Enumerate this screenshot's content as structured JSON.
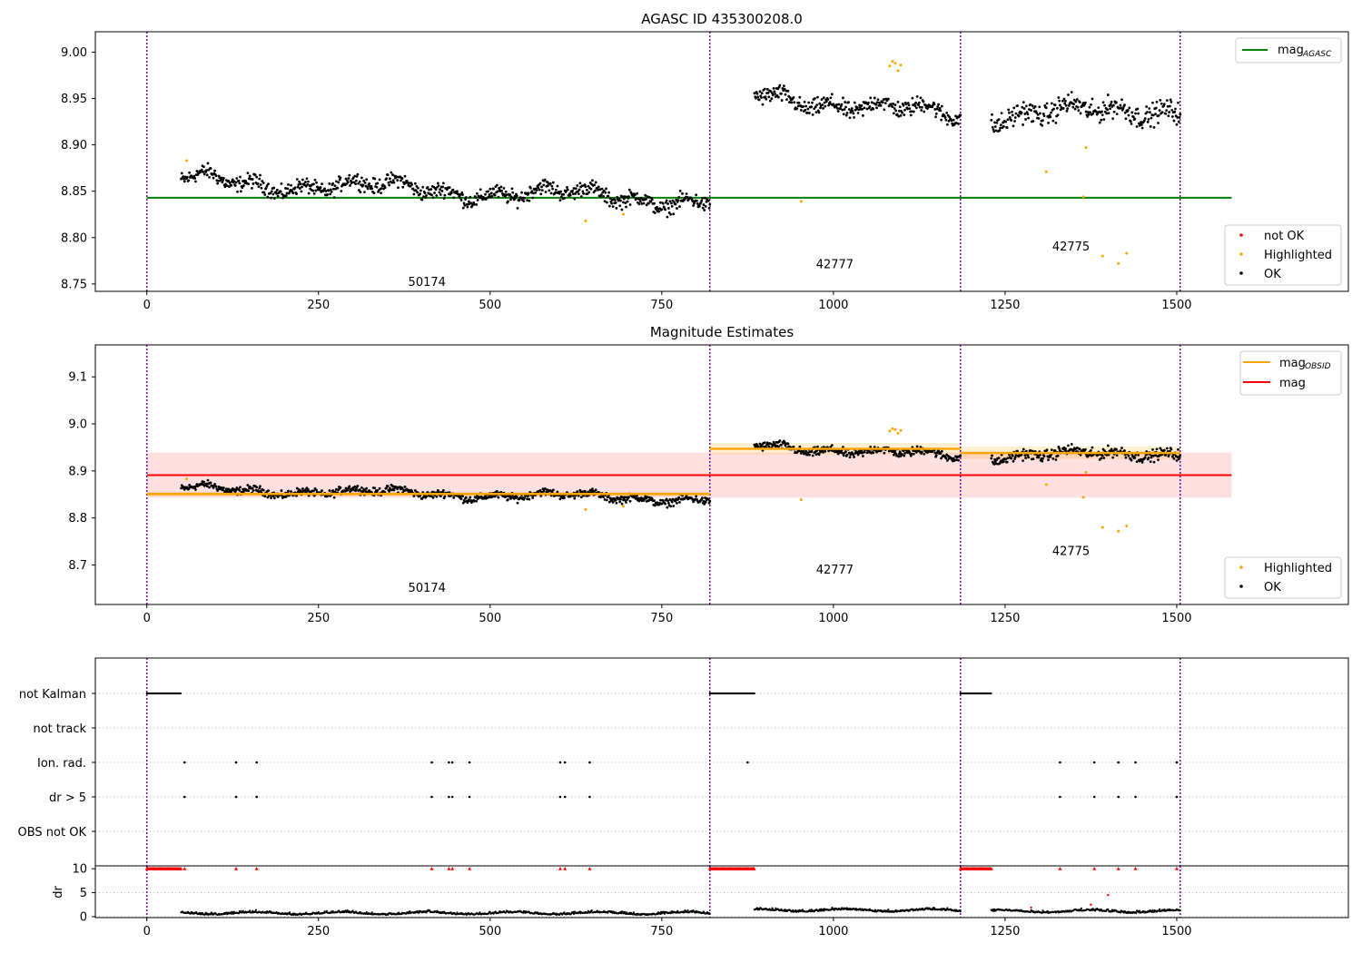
{
  "chart_data": [
    {
      "type": "scatter",
      "title": "AGASC ID 435300208.0",
      "xlim": [
        -75,
        1750
      ],
      "ylim": [
        8.742,
        9.022
      ],
      "xticks": [
        "0",
        "250",
        "500",
        "750",
        "1000",
        "1250",
        "1500"
      ],
      "yticks": [
        "8.75",
        "8.80",
        "8.85",
        "8.90",
        "8.95",
        "9.00"
      ],
      "obs_boundaries": [
        0,
        820,
        1185,
        1505
      ],
      "obs_labels": [
        {
          "text": "50174",
          "x": 408,
          "y": 8.748
        },
        {
          "text": "42777",
          "x": 1002,
          "y": 8.767
        },
        {
          "text": "42775",
          "x": 1346,
          "y": 8.786
        }
      ],
      "mag_agasc": {
        "value": 8.843,
        "x_range": [
          0,
          1580
        ]
      },
      "segments": [
        {
          "x_start": 50,
          "x_end": 820,
          "trend_start": 8.862,
          "trend_end": 8.84,
          "noise": 0.007
        },
        {
          "x_start": 885,
          "x_end": 1185,
          "trend_start": 8.955,
          "trend_end": 8.93,
          "noise": 0.008
        },
        {
          "x_start": 1230,
          "x_end": 1505,
          "trend_start": 8.93,
          "trend_end": 8.94,
          "noise": 0.01
        }
      ],
      "highlighted_points": [
        [
          58,
          8.883
        ],
        [
          639,
          8.818
        ],
        [
          694,
          8.825
        ],
        [
          953,
          8.839
        ],
        [
          1082,
          8.985
        ],
        [
          1086,
          8.99
        ],
        [
          1090,
          8.988
        ],
        [
          1094,
          8.98
        ],
        [
          1098,
          8.986
        ],
        [
          1310,
          8.871
        ],
        [
          1364,
          8.844
        ],
        [
          1368,
          8.897
        ],
        [
          1392,
          8.78
        ],
        [
          1415,
          8.772
        ],
        [
          1427,
          8.783
        ]
      ],
      "legend_upper": [
        {
          "name": "mag_AGASC",
          "main": "mag",
          "sub": "AGASC",
          "color": "#008000",
          "marker": "line"
        }
      ],
      "legend_lower": [
        {
          "name": "not OK",
          "color": "#ff0000",
          "marker": "dot"
        },
        {
          "name": "Highlighted",
          "color": "#ffa500",
          "marker": "dot"
        },
        {
          "name": "OK",
          "color": "#000000",
          "marker": "dot"
        }
      ]
    },
    {
      "type": "scatter",
      "title": "Magnitude Estimates",
      "xlim": [
        -75,
        1750
      ],
      "ylim": [
        8.616,
        9.168
      ],
      "xticks": [
        "0",
        "250",
        "500",
        "750",
        "1000",
        "1250",
        "1500"
      ],
      "yticks": [
        "8.7",
        "8.8",
        "8.9",
        "9.0",
        "9.1"
      ],
      "obs_boundaries": [
        0,
        820,
        1185,
        1505
      ],
      "obs_labels": [
        {
          "text": "50174",
          "x": 408,
          "y": 8.643
        },
        {
          "text": "42777",
          "x": 1002,
          "y": 8.682
        },
        {
          "text": "42775",
          "x": 1346,
          "y": 8.721
        }
      ],
      "mag": {
        "value": 8.891,
        "band": [
          8.843,
          8.939
        ],
        "x_range": [
          0,
          1580
        ],
        "color": "#ff0000"
      },
      "mag_obsid": [
        {
          "x_range": [
            0,
            820
          ],
          "value": 8.851,
          "band": [
            8.846,
            8.856
          ]
        },
        {
          "x_range": [
            820,
            1185
          ],
          "value": 8.947,
          "band": [
            8.935,
            8.96
          ]
        },
        {
          "x_range": [
            1185,
            1505
          ],
          "value": 8.938,
          "band": [
            8.925,
            8.952
          ]
        }
      ],
      "legend_upper": [
        {
          "name": "mag_OBSID",
          "main": "mag",
          "sub": "OBSID",
          "color": "#ffa500",
          "marker": "line"
        },
        {
          "name": "mag",
          "main": "mag",
          "sub": "",
          "color": "#ff0000",
          "marker": "line"
        }
      ],
      "legend_lower": [
        {
          "name": "Highlighted",
          "color": "#ffa500",
          "marker": "dot"
        },
        {
          "name": "OK",
          "color": "#000000",
          "marker": "dot"
        }
      ]
    },
    {
      "type": "scatter",
      "title": "",
      "xlim": [
        -75,
        1750
      ],
      "categories": [
        "not Kalman",
        "not track",
        "Ion. rad.",
        "dr > 5",
        "OBS not OK"
      ],
      "not_kalman_ranges": [
        [
          0,
          50
        ],
        [
          820,
          885
        ],
        [
          1185,
          1230
        ]
      ],
      "ion_rad_x": [
        55,
        130,
        160,
        415,
        440,
        445,
        470,
        602,
        609,
        645,
        875,
        1330,
        1380,
        1415,
        1440,
        1500
      ],
      "dr_gt5_x": [
        55,
        130,
        160,
        415,
        440,
        445,
        470,
        602,
        609,
        645,
        1330,
        1380,
        1415,
        1440,
        1500
      ]
    },
    {
      "type": "scatter",
      "title": "",
      "ylabel": "dr",
      "xlim": [
        -75,
        1750
      ],
      "ylim": [
        -0.2,
        10.6
      ],
      "xticks": [
        "0",
        "250",
        "500",
        "750",
        "1000",
        "1250",
        "1500"
      ],
      "yticks": [
        "0",
        "5",
        "10"
      ],
      "flag_value": 10,
      "flag_ranges": [
        [
          0,
          50
        ],
        [
          820,
          885
        ],
        [
          1185,
          1230
        ]
      ],
      "flag_points_x": [
        55,
        130,
        160,
        415,
        440,
        445,
        470,
        602,
        609,
        645,
        1330,
        1380,
        1415,
        1440,
        1500
      ],
      "outlier_points": [
        [
          1400,
          4.5
        ],
        [
          1375,
          2.5
        ],
        [
          1288,
          1.9
        ]
      ],
      "segments": [
        {
          "x_start": 50,
          "x_end": 820,
          "level": 0.6
        },
        {
          "x_start": 885,
          "x_end": 1185,
          "level": 1.2
        },
        {
          "x_start": 1230,
          "x_end": 1505,
          "level": 1.0
        }
      ]
    }
  ]
}
